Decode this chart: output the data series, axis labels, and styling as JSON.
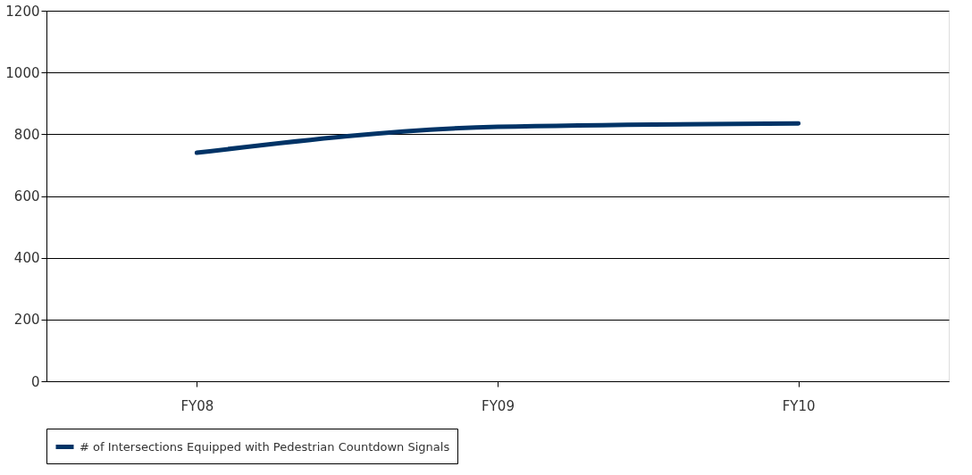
{
  "chart_data": {
    "type": "line",
    "categories": [
      "FY08",
      "FY09",
      "FY10"
    ],
    "series": [
      {
        "name": "# of Intersections Equipped with Pedestrian Countdown Signals",
        "color": "#003366",
        "values": [
          740,
          824,
          835
        ]
      }
    ],
    "ylim": [
      0,
      1200
    ],
    "yticks": [
      0,
      200,
      400,
      600,
      800,
      1000,
      1200
    ],
    "grid": "y",
    "legend": "bottom",
    "marker": "none",
    "line_style": "solid"
  }
}
